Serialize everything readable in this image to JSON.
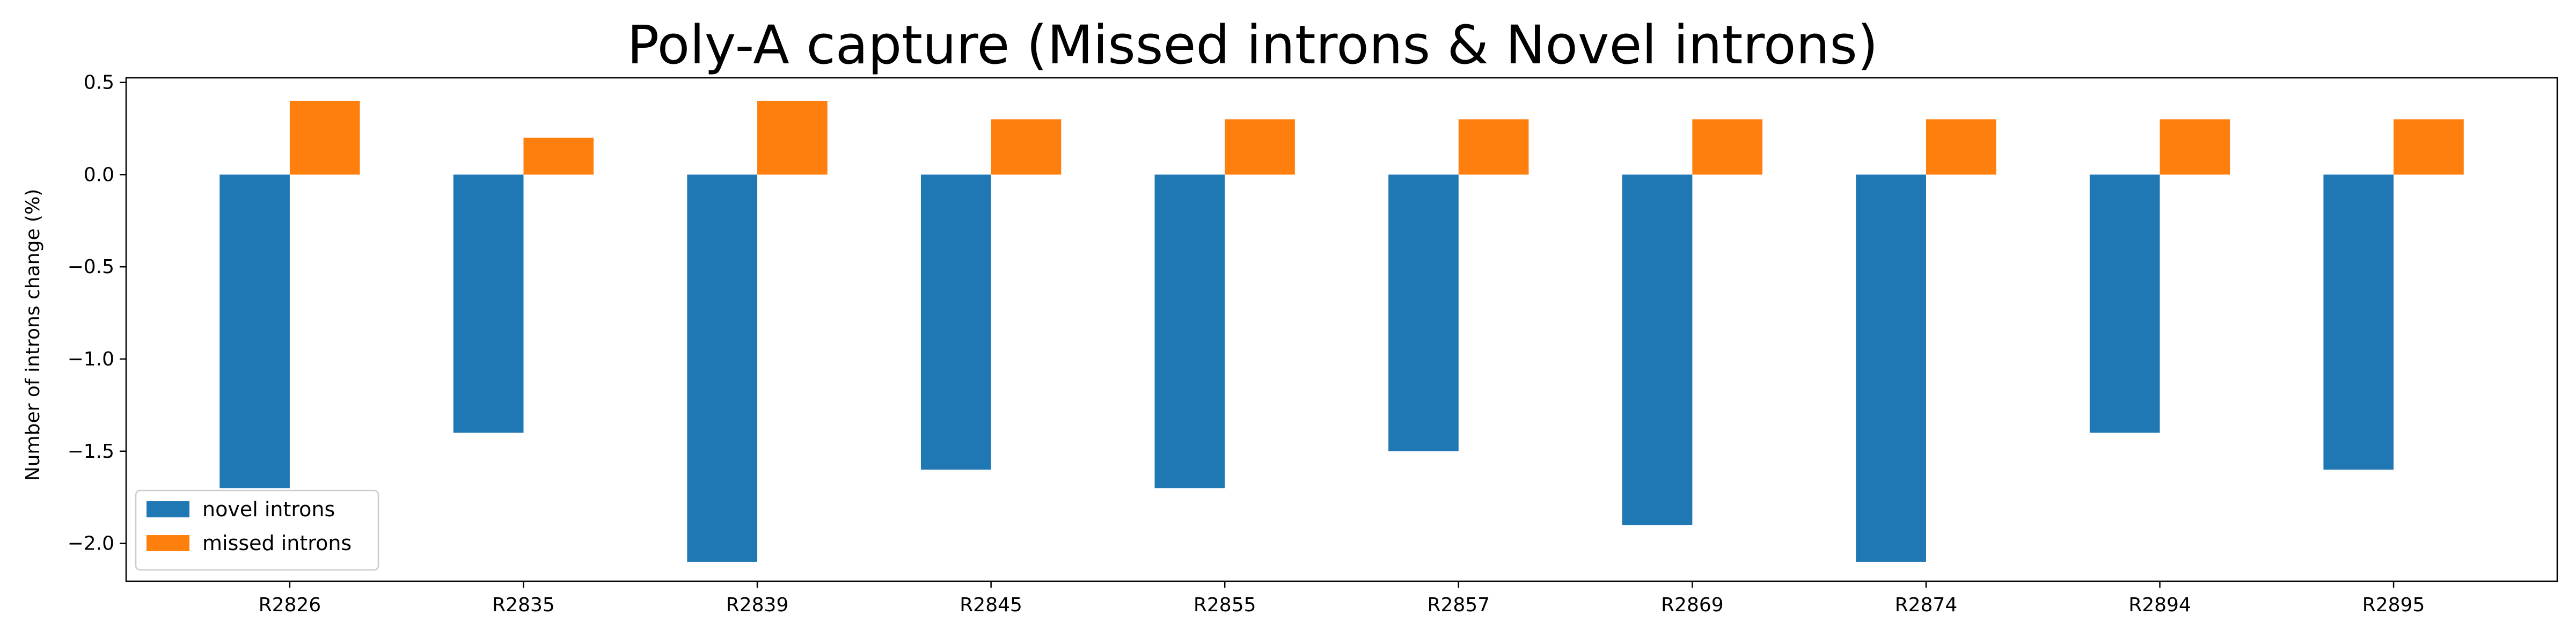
{
  "chart_data": {
    "type": "bar",
    "title": "Poly-A capture (Missed introns & Novel introns)",
    "xlabel": "",
    "ylabel": "Number of introns change (%)",
    "categories": [
      "R2826",
      "R2835",
      "R2839",
      "R2845",
      "R2855",
      "R2857",
      "R2869",
      "R2874",
      "R2894",
      "R2895"
    ],
    "series": [
      {
        "name": "novel introns",
        "color": "#1f77b4",
        "values": [
          -1.7,
          -1.4,
          -2.1,
          -1.6,
          -1.7,
          -1.5,
          -1.9,
          -2.1,
          -1.4,
          -1.6
        ]
      },
      {
        "name": "missed introns",
        "color": "#ff7f0e",
        "values": [
          0.4,
          0.2,
          0.4,
          0.3,
          0.3,
          0.3,
          0.3,
          0.3,
          0.3,
          0.3
        ]
      }
    ],
    "yticks": [
      0.5,
      0.0,
      -0.5,
      -1.0,
      -1.5,
      -2.0
    ],
    "ytick_labels": [
      "0.5",
      "0.0",
      "−0.5",
      "−1.0",
      "−1.5",
      "−2.0"
    ],
    "ylim": [
      -2.205,
      0.525
    ],
    "grid": false,
    "legend_position": "lower-left"
  }
}
